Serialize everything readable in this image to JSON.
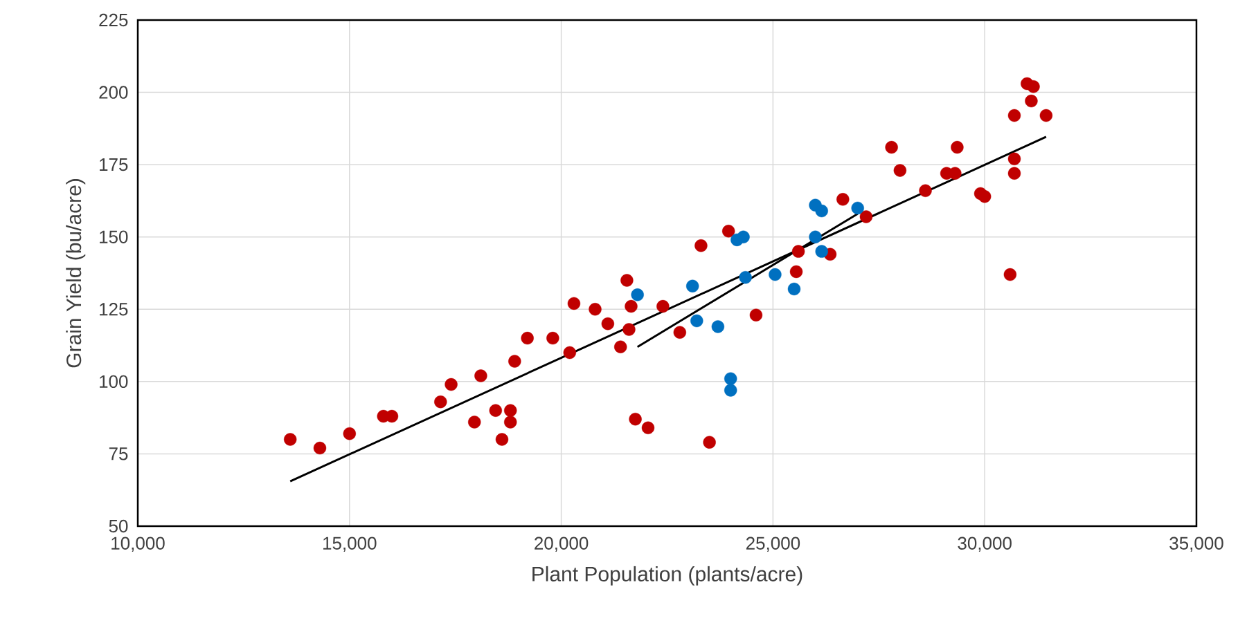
{
  "chart_data": {
    "type": "scatter",
    "xlabel": "Plant Population (plants/acre)",
    "ylabel": "Grain Yield (bu/acre)",
    "xlim": [
      10000,
      35000
    ],
    "ylim": [
      50,
      225
    ],
    "xticks": [
      {
        "value": 10000,
        "label": "10,000"
      },
      {
        "value": 15000,
        "label": "15,000"
      },
      {
        "value": 20000,
        "label": "20,000"
      },
      {
        "value": 25000,
        "label": "25,000"
      },
      {
        "value": 30000,
        "label": "30,000"
      },
      {
        "value": 35000,
        "label": "35,000"
      }
    ],
    "yticks": [
      50,
      75,
      100,
      125,
      150,
      175,
      200,
      225
    ],
    "grid": true,
    "marker": "circle",
    "series": [
      {
        "color": "#c00000",
        "x": [
          13600,
          14300,
          15000,
          15800,
          16000,
          17150,
          17400,
          18100,
          17950,
          18450,
          18800,
          18800,
          18600,
          18900,
          19200,
          19800,
          20200,
          20300,
          20800,
          21100,
          21400,
          21550,
          21650,
          21600,
          21750,
          22050,
          22400,
          22800,
          23300,
          23500,
          23950,
          24600,
          25550,
          25600,
          26350,
          26650,
          27200,
          27800,
          28000,
          28600,
          29100,
          29300,
          29350,
          29900,
          30000,
          30600,
          30700,
          30700,
          30700,
          31000,
          31150,
          31100,
          31450
        ],
        "values": [
          80,
          77,
          82,
          88,
          88,
          93,
          99,
          102,
          86,
          90,
          90,
          86,
          80,
          107,
          115,
          115,
          110,
          127,
          125,
          120,
          112,
          135,
          126,
          118,
          87,
          84,
          126,
          117,
          147,
          79,
          152,
          123,
          138,
          145,
          144,
          163,
          157,
          181,
          173,
          166,
          172,
          172,
          181,
          165,
          164,
          137,
          177,
          172,
          192,
          203,
          202,
          197,
          192
        ]
      },
      {
        "color": "#0070c0",
        "x": [
          21800,
          23100,
          23200,
          23700,
          24000,
          24000,
          24150,
          24300,
          24350,
          25050,
          25500,
          26000,
          26150,
          26000,
          26150,
          27000
        ],
        "values": [
          130,
          133,
          121,
          119,
          101,
          97,
          149,
          150,
          136,
          137,
          132,
          161,
          159,
          150,
          145,
          160
        ]
      },
      {
        "type": "line",
        "color": "#000000",
        "marker": "none",
        "x": [
          13600,
          31450
        ],
        "values": [
          65.5,
          184.6
        ]
      },
      {
        "type": "line",
        "color": "#000000",
        "marker": "none",
        "x": [
          21800,
          27000
        ],
        "values": [
          112,
          158
        ]
      }
    ]
  }
}
